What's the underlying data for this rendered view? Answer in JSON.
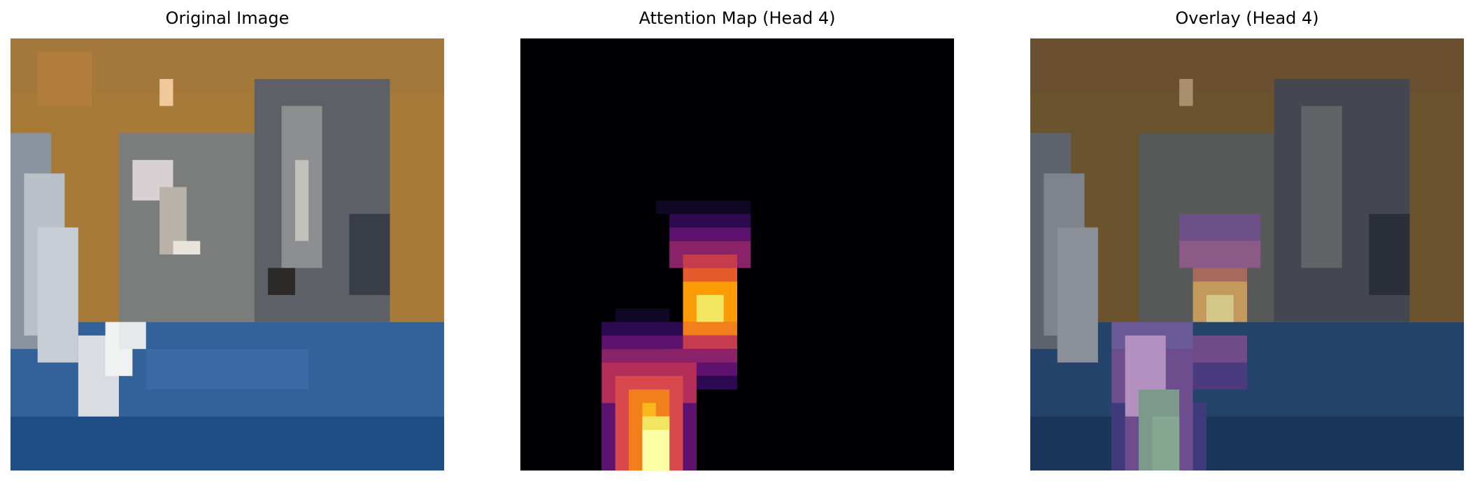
{
  "panels": [
    {
      "title": "Original Image"
    },
    {
      "title": "Attention Map (Head 4)"
    },
    {
      "title": "Overlay (Head 4)"
    }
  ],
  "colors": {
    "background": "#ffffff",
    "title_text": "#000000"
  }
}
